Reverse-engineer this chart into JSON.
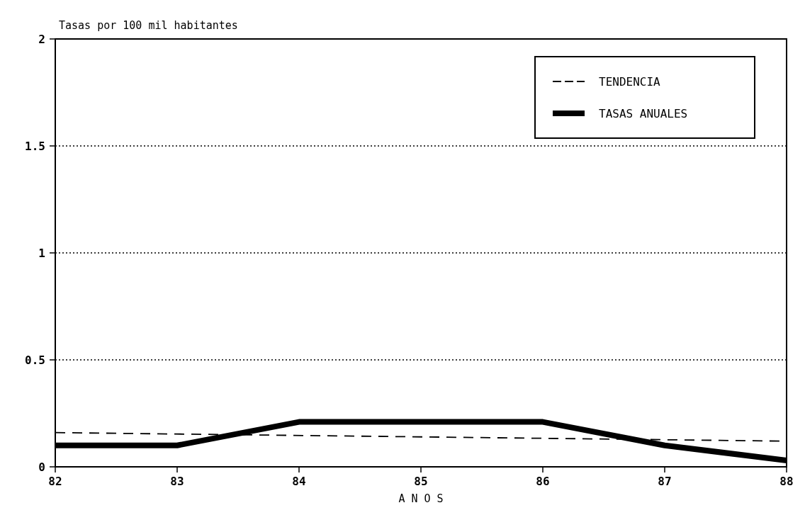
{
  "chart_data": {
    "type": "line",
    "title": "Tasas por 100 mil habitantes",
    "xlabel": "A N O S",
    "x": [
      82,
      83,
      84,
      85,
      86,
      87,
      88
    ],
    "xlim": [
      82,
      88
    ],
    "xticks": [
      82,
      83,
      84,
      85,
      86,
      87,
      88
    ],
    "ylim": [
      0,
      2
    ],
    "yticks": [
      0,
      0.5,
      1,
      1.5,
      2
    ],
    "grid": "y",
    "legend": "top right",
    "series": [
      {
        "name": "TENDENCIA",
        "color": "#000000",
        "line_style": "dashed",
        "x": [
          82,
          88
        ],
        "values": [
          0.16,
          0.12
        ]
      },
      {
        "name": "TASAS ANUALES",
        "color": "#000000",
        "line_style": "solid",
        "values": [
          0.1,
          0.1,
          0.21,
          0.21,
          0.21,
          0.1,
          0.03
        ]
      }
    ]
  }
}
